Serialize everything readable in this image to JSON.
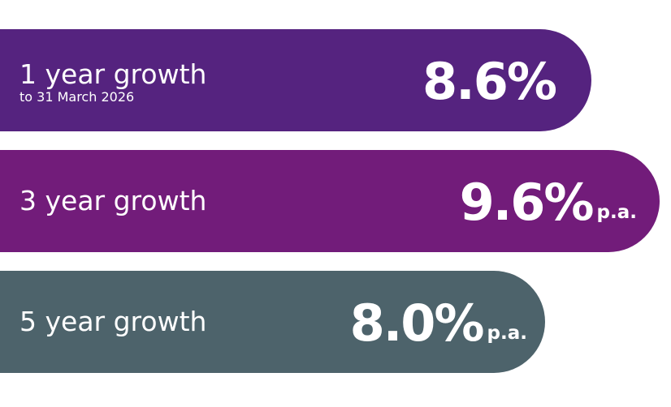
{
  "colors": {
    "bar_1": "#55237f",
    "bar_2": "#721c7a",
    "bar_3": "#4d636b",
    "text": "#ffffff",
    "background": "#ffffff"
  },
  "chart_data": {
    "type": "bar",
    "orientation": "horizontal",
    "categories": [
      "1 year growth",
      "3 year growth",
      "5 year growth"
    ],
    "values": [
      8.6,
      9.6,
      8.0
    ],
    "unit": "%",
    "annotations": [
      "to 31 March 2026"
    ],
    "bars": [
      {
        "label": "1 year growth",
        "sublabel": "to 31 March 2026",
        "value_text": "8.6%",
        "suffix": "",
        "value": 8.6
      },
      {
        "label": "3 year growth",
        "sublabel": "",
        "value_text": "9.6%",
        "suffix": "p.a.",
        "value": 9.6
      },
      {
        "label": "5 year growth",
        "sublabel": "",
        "value_text": "8.0%",
        "suffix": "p.a.",
        "value": 8.0
      }
    ]
  }
}
